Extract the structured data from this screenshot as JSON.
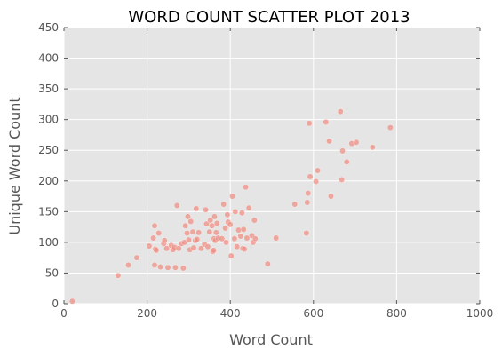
{
  "chart_data": {
    "type": "scatter",
    "title": "WORD COUNT SCATTER PLOT 2013",
    "xlabel": "Word Count",
    "ylabel": "Unique Word Count",
    "xlim": [
      0,
      1000
    ],
    "ylim": [
      0,
      450
    ],
    "xticks": [
      0,
      200,
      400,
      600,
      800,
      1000
    ],
    "yticks": [
      0,
      50,
      100,
      150,
      200,
      250,
      300,
      350,
      400,
      450
    ],
    "grid": true,
    "legend": "none",
    "colors": {
      "background": "#e5e5e5",
      "grid": "#ffffff",
      "marker": "#f08c80"
    },
    "points": [
      [
        20,
        4
      ],
      [
        130,
        46
      ],
      [
        155,
        63
      ],
      [
        175,
        75
      ],
      [
        205,
        94
      ],
      [
        215,
        107
      ],
      [
        218,
        127
      ],
      [
        220,
        89
      ],
      [
        222,
        87
      ],
      [
        218,
        63
      ],
      [
        232,
        60
      ],
      [
        228,
        115
      ],
      [
        240,
        98
      ],
      [
        242,
        103
      ],
      [
        247,
        90
      ],
      [
        250,
        59
      ],
      [
        258,
        95
      ],
      [
        262,
        88
      ],
      [
        266,
        92
      ],
      [
        268,
        59
      ],
      [
        272,
        160
      ],
      [
        276,
        90
      ],
      [
        283,
        98
      ],
      [
        287,
        58
      ],
      [
        290,
        100
      ],
      [
        292,
        127
      ],
      [
        296,
        115
      ],
      [
        298,
        142
      ],
      [
        300,
        104
      ],
      [
        303,
        88
      ],
      [
        305,
        134
      ],
      [
        310,
        117
      ],
      [
        312,
        91
      ],
      [
        316,
        103
      ],
      [
        318,
        155
      ],
      [
        320,
        105
      ],
      [
        324,
        116
      ],
      [
        330,
        90
      ],
      [
        338,
        97
      ],
      [
        341,
        153
      ],
      [
        343,
        130
      ],
      [
        346,
        93
      ],
      [
        350,
        117
      ],
      [
        352,
        136
      ],
      [
        356,
        127
      ],
      [
        358,
        85
      ],
      [
        360,
        87
      ],
      [
        361,
        106
      ],
      [
        362,
        142
      ],
      [
        364,
        103
      ],
      [
        366,
        116
      ],
      [
        368,
        131
      ],
      [
        371,
        107
      ],
      [
        380,
        106
      ],
      [
        384,
        162
      ],
      [
        388,
        123
      ],
      [
        390,
        100
      ],
      [
        393,
        145
      ],
      [
        395,
        133
      ],
      [
        400,
        129
      ],
      [
        402,
        78
      ],
      [
        405,
        175
      ],
      [
        410,
        106
      ],
      [
        412,
        150
      ],
      [
        416,
        93
      ],
      [
        420,
        120
      ],
      [
        425,
        110
      ],
      [
        428,
        148
      ],
      [
        430,
        90
      ],
      [
        432,
        121
      ],
      [
        434,
        89
      ],
      [
        437,
        190
      ],
      [
        440,
        107
      ],
      [
        445,
        156
      ],
      [
        452,
        111
      ],
      [
        455,
        100
      ],
      [
        458,
        136
      ],
      [
        460,
        106
      ],
      [
        490,
        65
      ],
      [
        510,
        107
      ],
      [
        555,
        162
      ],
      [
        583,
        115
      ],
      [
        585,
        165
      ],
      [
        587,
        180
      ],
      [
        590,
        294
      ],
      [
        592,
        207
      ],
      [
        606,
        199
      ],
      [
        610,
        217
      ],
      [
        630,
        296
      ],
      [
        638,
        265
      ],
      [
        642,
        175
      ],
      [
        665,
        313
      ],
      [
        668,
        202
      ],
      [
        670,
        249
      ],
      [
        680,
        231
      ],
      [
        692,
        261
      ],
      [
        703,
        263
      ],
      [
        742,
        255
      ],
      [
        785,
        287
      ]
    ]
  }
}
